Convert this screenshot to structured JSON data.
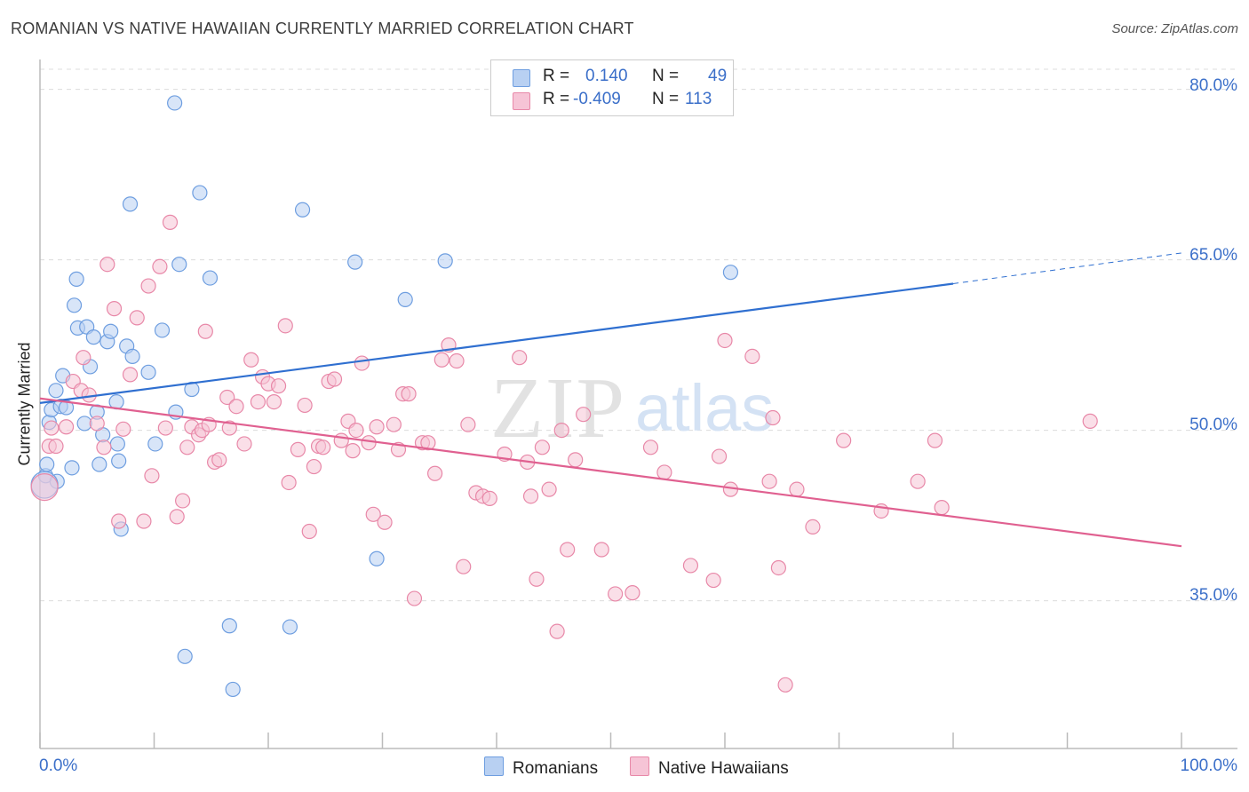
{
  "title": "ROMANIAN VS NATIVE HAWAIIAN CURRENTLY MARRIED CORRELATION CHART",
  "source": "Source: ZipAtlas.com",
  "watermark": "ZIPatlas",
  "legend": {
    "rows": [
      {
        "r_label": "R =",
        "r_value": "0.140",
        "n_label": "N =",
        "n_value": "49",
        "color": "#6e9ee0",
        "fill": "#b8d0f2"
      },
      {
        "r_label": "R =",
        "r_value": "-0.409",
        "n_label": "N =",
        "n_value": "113",
        "color": "#e888a8",
        "fill": "#f6c4d6"
      }
    ]
  },
  "bottom_legend": [
    {
      "label": "Romanians",
      "fill": "#b8d0f2",
      "color": "#6e9ee0"
    },
    {
      "label": "Native Hawaiians",
      "fill": "#f6c4d6",
      "color": "#e888a8"
    }
  ],
  "chart_data": {
    "type": "scatter",
    "title": "ROMANIAN VS NATIVE HAWAIIAN CURRENTLY MARRIED CORRELATION CHART",
    "xlabel": "",
    "ylabel": "Currently Married",
    "xlim": [
      0,
      100
    ],
    "ylim": [
      22,
      82
    ],
    "x_tick_labels": {
      "min": "0.0%",
      "max": "100.0%"
    },
    "y_ticks": [
      {
        "value": 80,
        "label": "80.0%"
      },
      {
        "value": 65,
        "label": "65.0%"
      },
      {
        "value": 50,
        "label": "50.0%"
      },
      {
        "value": 35,
        "label": "35.0%"
      }
    ],
    "series": [
      {
        "name": "Romanians",
        "color": "#6e9ee0",
        "fill": "#b8d0f2",
        "line_color": "#2f6fd0",
        "trend": {
          "x0": 0,
          "y0": 52.4,
          "x1": 80,
          "y1": 62.9,
          "dash_x1": 100,
          "dash_y1": 65.6
        },
        "points": [
          [
            0.5,
            46.0
          ],
          [
            0.6,
            47.0
          ],
          [
            0.8,
            50.7
          ],
          [
            1.0,
            51.8
          ],
          [
            1.4,
            53.5
          ],
          [
            1.8,
            52.1
          ],
          [
            2.0,
            54.8
          ],
          [
            2.3,
            52.0
          ],
          [
            3.0,
            61.0
          ],
          [
            3.2,
            63.3
          ],
          [
            3.3,
            59.0
          ],
          [
            2.8,
            46.7
          ],
          [
            3.9,
            50.6
          ],
          [
            4.1,
            59.1
          ],
          [
            4.4,
            55.6
          ],
          [
            4.7,
            58.2
          ],
          [
            5.0,
            51.6
          ],
          [
            5.2,
            47.0
          ],
          [
            5.5,
            49.6
          ],
          [
            5.9,
            57.8
          ],
          [
            6.2,
            58.7
          ],
          [
            6.7,
            52.5
          ],
          [
            6.8,
            48.8
          ],
          [
            6.9,
            47.3
          ],
          [
            7.1,
            41.3
          ],
          [
            7.6,
            57.4
          ],
          [
            7.9,
            69.9
          ],
          [
            8.1,
            56.5
          ],
          [
            9.5,
            55.1
          ],
          [
            10.1,
            48.8
          ],
          [
            10.7,
            58.8
          ],
          [
            11.8,
            78.8
          ],
          [
            11.9,
            51.6
          ],
          [
            12.2,
            64.6
          ],
          [
            12.7,
            30.1
          ],
          [
            13.3,
            53.6
          ],
          [
            14.0,
            70.9
          ],
          [
            14.9,
            63.4
          ],
          [
            16.6,
            32.8
          ],
          [
            16.9,
            27.2
          ],
          [
            21.9,
            32.7
          ],
          [
            23.0,
            69.4
          ],
          [
            27.6,
            64.8
          ],
          [
            29.5,
            38.7
          ],
          [
            32.0,
            61.5
          ],
          [
            35.5,
            64.9
          ],
          [
            60.5,
            63.9
          ],
          [
            1.5,
            45.5
          ],
          [
            0.4,
            45.2
          ]
        ]
      },
      {
        "name": "Native Hawaiians",
        "color": "#e888a8",
        "fill": "#f6c4d6",
        "line_color": "#e06090",
        "trend": {
          "x0": 0,
          "y0": 52.8,
          "x1": 100,
          "y1": 39.8
        },
        "points": [
          [
            0.4,
            45.0
          ],
          [
            0.8,
            48.6
          ],
          [
            1.4,
            48.6
          ],
          [
            2.3,
            50.3
          ],
          [
            2.9,
            54.3
          ],
          [
            3.6,
            53.5
          ],
          [
            3.8,
            56.4
          ],
          [
            4.3,
            53.1
          ],
          [
            5.0,
            50.6
          ],
          [
            5.6,
            48.5
          ],
          [
            5.9,
            64.6
          ],
          [
            6.5,
            60.7
          ],
          [
            6.9,
            42.0
          ],
          [
            7.3,
            50.1
          ],
          [
            7.9,
            54.9
          ],
          [
            8.5,
            59.9
          ],
          [
            9.1,
            42.0
          ],
          [
            9.5,
            62.7
          ],
          [
            9.8,
            46.0
          ],
          [
            10.5,
            64.4
          ],
          [
            11.0,
            50.2
          ],
          [
            11.4,
            68.3
          ],
          [
            12.0,
            42.4
          ],
          [
            12.5,
            43.8
          ],
          [
            12.9,
            48.5
          ],
          [
            13.3,
            50.3
          ],
          [
            13.9,
            49.6
          ],
          [
            14.2,
            50.0
          ],
          [
            14.5,
            58.7
          ],
          [
            14.8,
            50.5
          ],
          [
            15.3,
            47.2
          ],
          [
            15.7,
            47.4
          ],
          [
            16.4,
            52.9
          ],
          [
            16.6,
            50.2
          ],
          [
            17.2,
            52.1
          ],
          [
            17.9,
            48.8
          ],
          [
            18.5,
            56.2
          ],
          [
            19.1,
            52.5
          ],
          [
            19.5,
            54.7
          ],
          [
            20.0,
            54.1
          ],
          [
            20.5,
            52.5
          ],
          [
            20.9,
            53.9
          ],
          [
            21.5,
            59.2
          ],
          [
            21.8,
            45.4
          ],
          [
            22.6,
            48.3
          ],
          [
            23.2,
            52.2
          ],
          [
            23.6,
            41.1
          ],
          [
            24.0,
            46.8
          ],
          [
            24.4,
            48.6
          ],
          [
            24.8,
            48.5
          ],
          [
            25.3,
            54.3
          ],
          [
            25.8,
            54.5
          ],
          [
            26.4,
            49.1
          ],
          [
            27.0,
            50.8
          ],
          [
            27.4,
            48.2
          ],
          [
            27.7,
            50.0
          ],
          [
            28.2,
            55.9
          ],
          [
            28.8,
            48.9
          ],
          [
            29.2,
            42.6
          ],
          [
            29.5,
            50.3
          ],
          [
            30.2,
            41.9
          ],
          [
            31.0,
            50.5
          ],
          [
            31.4,
            48.3
          ],
          [
            31.8,
            53.2
          ],
          [
            32.3,
            53.2
          ],
          [
            32.8,
            35.2
          ],
          [
            33.5,
            48.9
          ],
          [
            34.0,
            48.9
          ],
          [
            34.6,
            46.2
          ],
          [
            35.2,
            56.2
          ],
          [
            35.8,
            57.5
          ],
          [
            36.5,
            56.1
          ],
          [
            37.1,
            38.0
          ],
          [
            37.5,
            50.5
          ],
          [
            38.2,
            44.5
          ],
          [
            38.8,
            44.2
          ],
          [
            39.4,
            44.0
          ],
          [
            40.7,
            47.9
          ],
          [
            42.0,
            56.4
          ],
          [
            42.7,
            47.2
          ],
          [
            43.0,
            44.2
          ],
          [
            43.5,
            36.9
          ],
          [
            44.0,
            48.5
          ],
          [
            44.6,
            44.8
          ],
          [
            45.3,
            32.3
          ],
          [
            45.7,
            50.0
          ],
          [
            46.2,
            39.5
          ],
          [
            46.9,
            47.4
          ],
          [
            47.6,
            51.4
          ],
          [
            49.2,
            39.5
          ],
          [
            50.4,
            35.6
          ],
          [
            51.9,
            35.7
          ],
          [
            53.5,
            48.5
          ],
          [
            54.7,
            46.3
          ],
          [
            57.0,
            38.1
          ],
          [
            59.0,
            36.8
          ],
          [
            59.5,
            47.7
          ],
          [
            60.0,
            57.9
          ],
          [
            60.5,
            44.8
          ],
          [
            62.4,
            56.5
          ],
          [
            63.9,
            45.5
          ],
          [
            64.2,
            51.1
          ],
          [
            64.7,
            37.9
          ],
          [
            65.3,
            27.6
          ],
          [
            66.3,
            44.8
          ],
          [
            67.7,
            41.5
          ],
          [
            70.4,
            49.1
          ],
          [
            73.7,
            42.9
          ],
          [
            76.9,
            45.5
          ],
          [
            78.4,
            49.1
          ],
          [
            79.0,
            43.2
          ],
          [
            92.0,
            50.8
          ],
          [
            1.0,
            50.2
          ]
        ]
      }
    ]
  }
}
